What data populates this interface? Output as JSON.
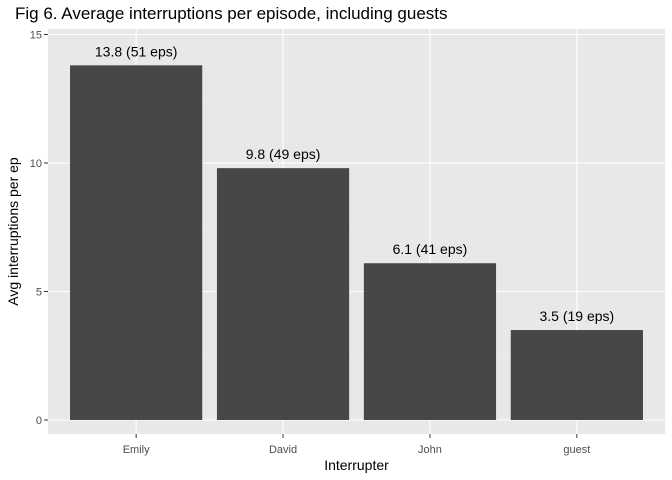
{
  "chart_data": {
    "type": "bar",
    "title": "Fig 6. Average interruptions per episode, including guests",
    "xlabel": "Interrupter",
    "ylabel": "Avg interruptions per ep",
    "categories": [
      "Emily",
      "David",
      "John",
      "guest"
    ],
    "values": [
      13.8,
      9.8,
      6.1,
      3.5
    ],
    "data_labels": [
      "13.8 (51 eps)",
      "9.8 (49 eps)",
      "6.1 (41 eps)",
      "3.5 (19 eps)"
    ],
    "ylim": [
      0,
      15
    ],
    "yticks": [
      0,
      5,
      10,
      15
    ],
    "ytick_labels": [
      "0",
      "5",
      "10",
      "15"
    ],
    "grid": true,
    "legend": "none",
    "colors": {
      "bar": "#474747",
      "panel": "#e8e8e8",
      "grid_major": "#ffffff",
      "grid_minor": "#f2f2f2"
    }
  }
}
